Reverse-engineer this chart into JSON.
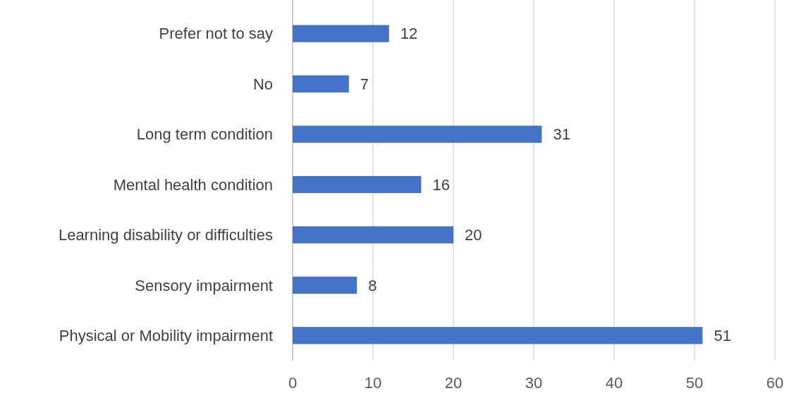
{
  "chart_data": {
    "type": "bar",
    "orientation": "horizontal",
    "categories": [
      "Prefer not to say",
      "No",
      "Long term condition",
      "Mental health condition",
      "Learning disability or difficulties",
      "Sensory impairment",
      "Physical or Mobility impairment"
    ],
    "values": [
      12,
      7,
      31,
      16,
      20,
      8,
      51
    ],
    "color": "#4472c4",
    "xlim": [
      0,
      60
    ],
    "xticks": [
      0,
      10,
      20,
      30,
      40,
      50,
      60
    ],
    "grid": "x",
    "data_labels": true
  }
}
